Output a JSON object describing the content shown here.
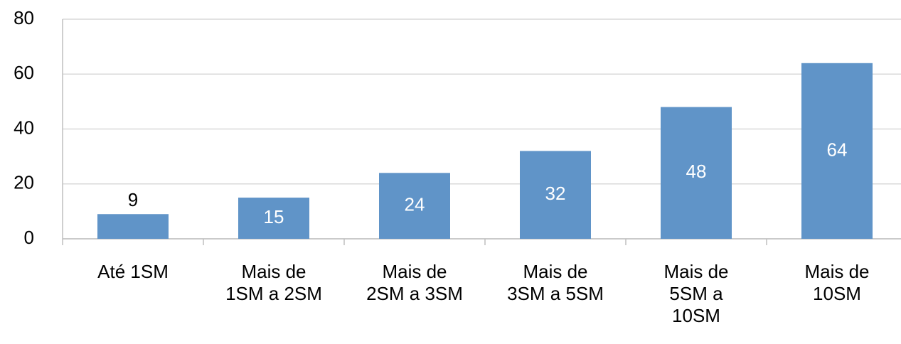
{
  "chart_data": {
    "type": "bar",
    "categories": [
      "Até 1SM",
      "Mais de\n1SM a 2SM",
      "Mais de\n2SM a 3SM",
      "Mais de\n3SM a 5SM",
      "Mais de\n5SM a\n10SM",
      "Mais de\n10SM"
    ],
    "values": [
      9,
      15,
      24,
      32,
      48,
      64
    ],
    "color": "#6094c8",
    "ylim": [
      0,
      80
    ],
    "yticks": [
      0,
      20,
      40,
      60,
      80
    ],
    "grid": true
  }
}
